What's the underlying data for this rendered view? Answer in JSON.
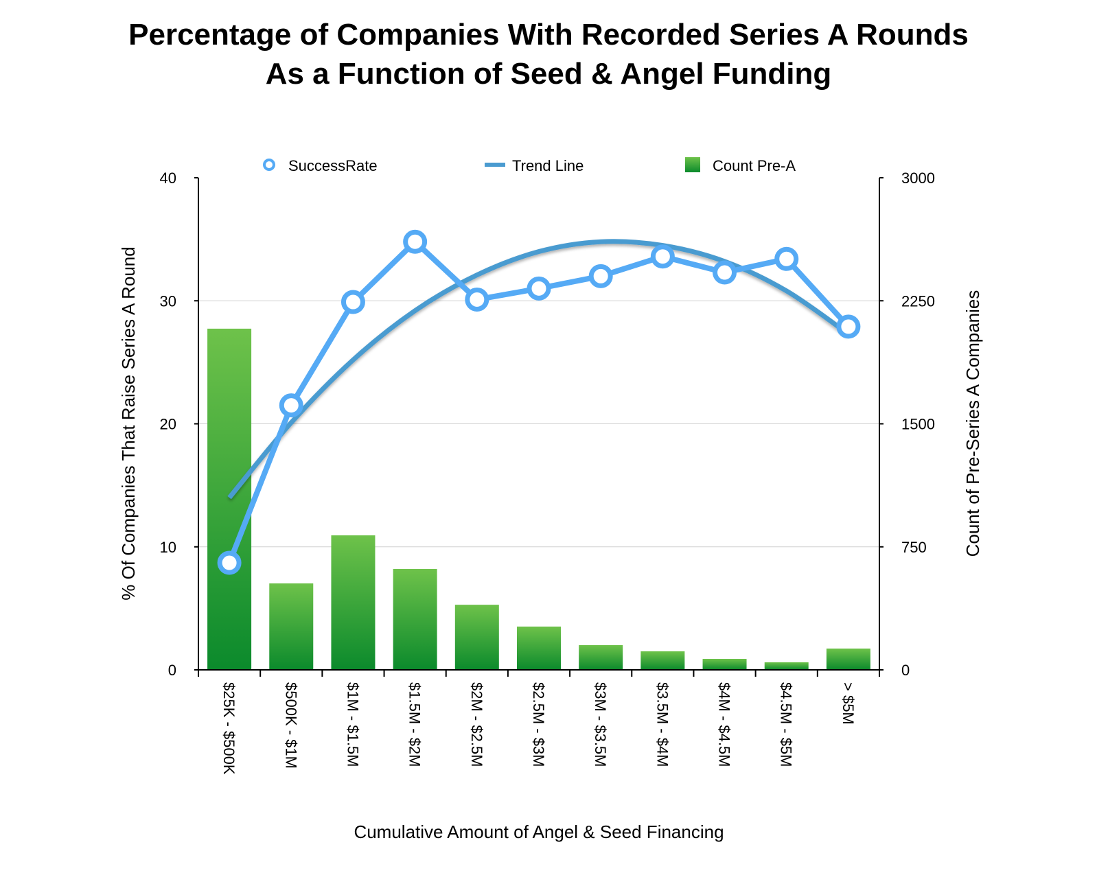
{
  "chart_data": {
    "type": "bar+line",
    "title_line1": "Percentage of Companies With Recorded Series A Rounds",
    "title_line2": "As a Function of Seed & Angel Funding",
    "xlabel": "Cumulative Amount of Angel & Seed Financing",
    "ylabel_left": "% Of Companies That Raise Series A Round",
    "ylabel_right": "Count of Pre-Series A Companies",
    "ylim_left": [
      0,
      40
    ],
    "yticks_left": [
      "0",
      "10",
      "20",
      "30",
      "40"
    ],
    "ylim_right": [
      0,
      3000
    ],
    "yticks_right": [
      "0",
      "750",
      "1500",
      "2250",
      "3000"
    ],
    "grid": true,
    "legend_position": "top",
    "categories": [
      "$25K - $500K",
      "$500K - $1M",
      "$1M - $1.5M",
      "$1.5M - $2M",
      "$2M - $2.5M",
      "$2.5M - $3M",
      "$3M - $3.5M",
      "$3.5M - $4M",
      "$4M - $4.5M",
      "$4.5M - $5M",
      "> $5M"
    ],
    "series": [
      {
        "name": "SuccessRate",
        "type": "line",
        "axis": "left",
        "color": "#55aaf5",
        "values": [
          8.7,
          21.5,
          29.9,
          34.8,
          30.1,
          31.0,
          32.0,
          33.6,
          32.3,
          33.4,
          27.9
        ]
      },
      {
        "name": "Trend Line",
        "type": "line",
        "axis": "left",
        "color": "#4a9bd0",
        "values": [
          14.0,
          20.1,
          25.2,
          29.2,
          32.1,
          34.0,
          34.8,
          34.5,
          33.2,
          30.8,
          27.3
        ]
      },
      {
        "name": "Count Pre-A",
        "type": "bar",
        "axis": "right",
        "color": "#2ea83a",
        "values": [
          2080,
          527,
          820,
          615,
          397,
          264,
          151,
          113,
          67,
          46,
          130
        ]
      }
    ]
  }
}
